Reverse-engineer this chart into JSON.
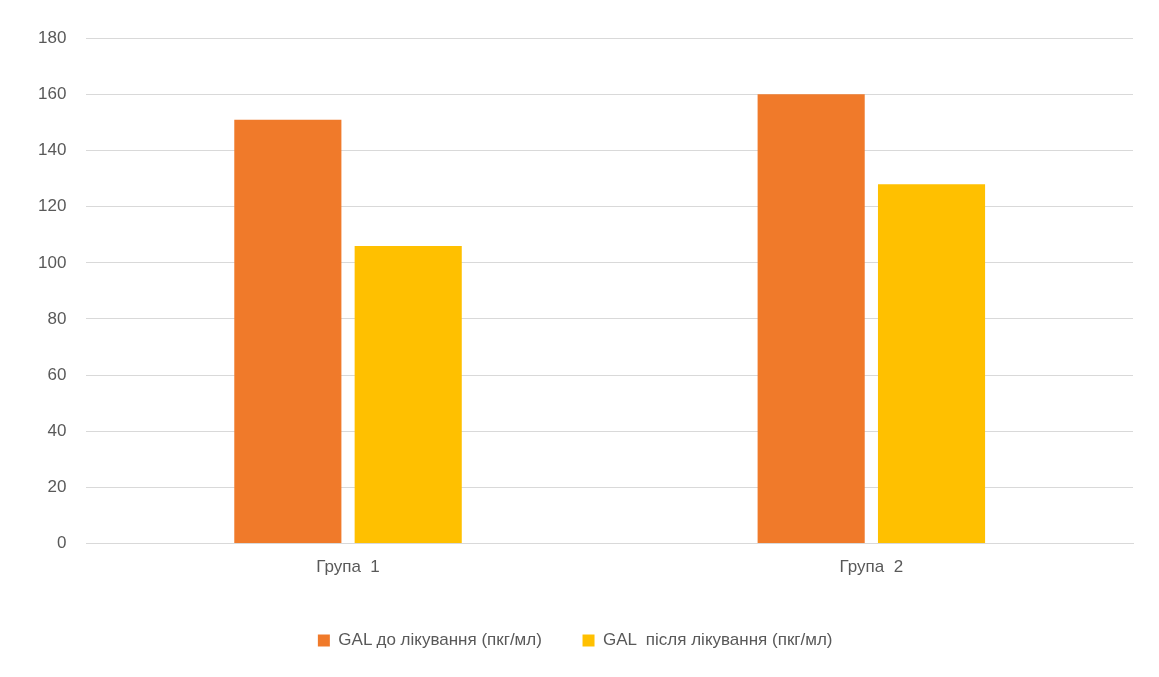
{
  "chart_data": {
    "type": "bar",
    "categories": [
      "Група  1",
      "Група  2"
    ],
    "series": [
      {
        "name": "GAL до лікування (пкг/мл)",
        "color": "#f07a2a",
        "values": [
          151,
          160
        ]
      },
      {
        "name": "GAL  після лікування (пкг/мл)",
        "color": "#ffc000",
        "values": [
          106,
          128
        ]
      }
    ],
    "ylim": [
      0,
      180
    ],
    "yticks": [
      0,
      20,
      40,
      60,
      80,
      100,
      120,
      140,
      160,
      180
    ],
    "grid": "y",
    "legend": "bottom"
  }
}
